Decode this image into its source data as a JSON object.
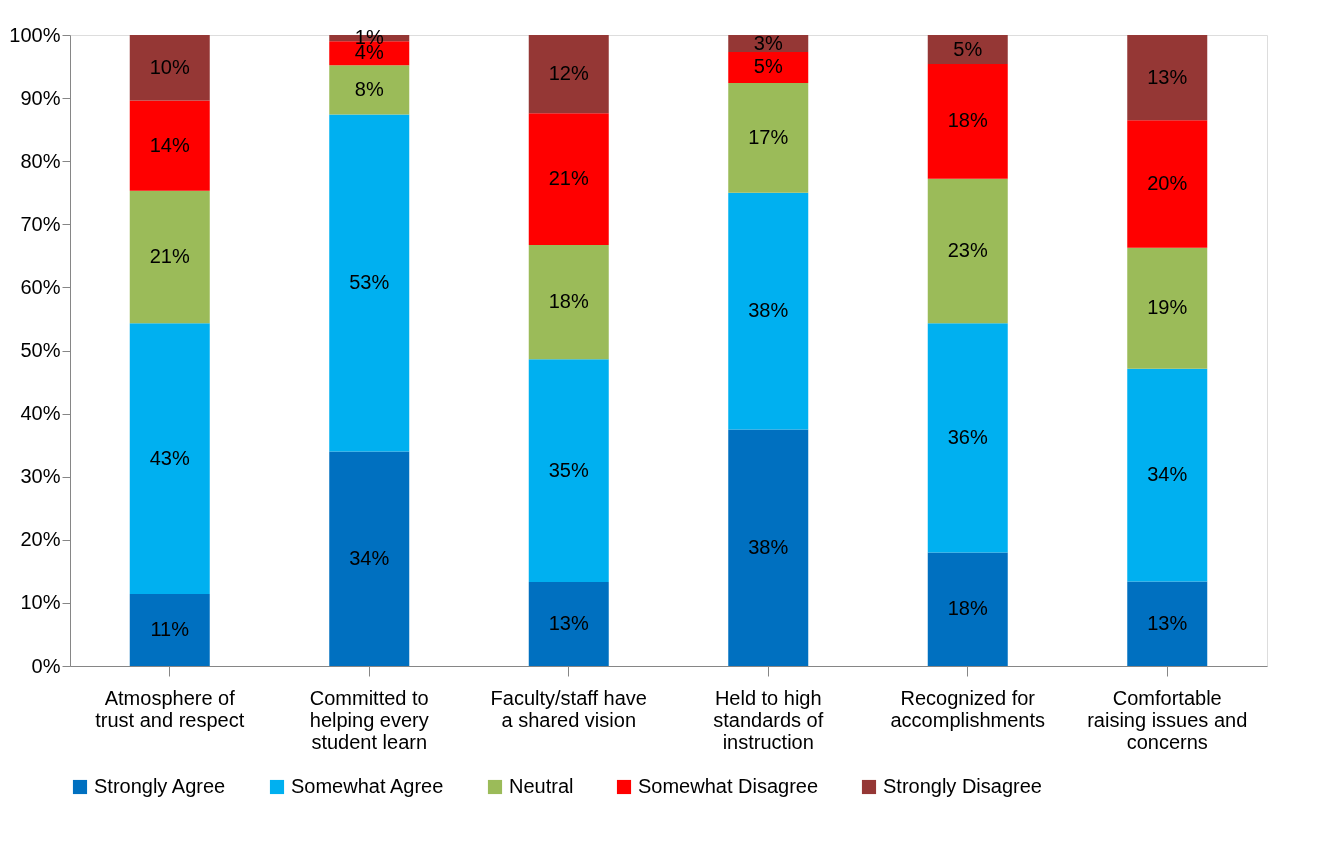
{
  "chart_data": {
    "type": "bar",
    "stacked": true,
    "categories": [
      "Atmosphere of trust and respect",
      "Committed to helping every student learn",
      "Faculty/staff have a shared vision",
      "Held to high standards of instruction",
      "Recognized for accomplishments",
      "Comfortable raising issues and concerns"
    ],
    "series": [
      {
        "name": "Strongly Agree",
        "color": "#0070c0",
        "values": [
          11.4,
          34.0,
          13.3,
          37.5,
          18.0,
          13.4
        ],
        "value_labels": [
          "11%",
          "34%",
          "13%",
          "38%",
          "18%",
          "13%"
        ]
      },
      {
        "name": "Somewhat Agree",
        "color": "#00b0f0",
        "values": [
          42.9,
          53.4,
          35.3,
          37.5,
          36.3,
          33.7
        ],
        "value_labels": [
          "43%",
          "53%",
          "35%",
          "38%",
          "36%",
          "34%"
        ]
      },
      {
        "name": "Neutral",
        "color": "#9bbb59",
        "values": [
          21.0,
          7.8,
          18.1,
          17.4,
          22.9,
          19.2
        ],
        "value_labels": [
          "21%",
          "8%",
          "18%",
          "17%",
          "23%",
          "19%"
        ]
      },
      {
        "name": "Somewhat Disagree",
        "color": "#ff0000",
        "values": [
          14.3,
          3.8,
          20.9,
          4.9,
          18.2,
          20.2
        ],
        "value_labels": [
          "14%",
          "4%",
          "21%",
          "5%",
          "18%",
          "20%"
        ]
      },
      {
        "name": "Strongly Disagree",
        "color": "#953735",
        "values": [
          10.4,
          1.0,
          12.4,
          2.7,
          4.6,
          13.5
        ],
        "value_labels": [
          "10%",
          "1%",
          "12%",
          "3%",
          "5%",
          "13%"
        ]
      }
    ],
    "ylim": [
      0,
      100
    ],
    "yticks": [
      {
        "value": 0,
        "label": "0%"
      },
      {
        "value": 10,
        "label": "10%"
      },
      {
        "value": 20,
        "label": "20%"
      },
      {
        "value": 30,
        "label": "30%"
      },
      {
        "value": 40,
        "label": "40%"
      },
      {
        "value": 50,
        "label": "50%"
      },
      {
        "value": 60,
        "label": "60%"
      },
      {
        "value": 70,
        "label": "70%"
      },
      {
        "value": 80,
        "label": "80%"
      },
      {
        "value": 90,
        "label": "90%"
      },
      {
        "value": 100,
        "label": "100%"
      }
    ],
    "grid": false,
    "legend": "bottom"
  }
}
